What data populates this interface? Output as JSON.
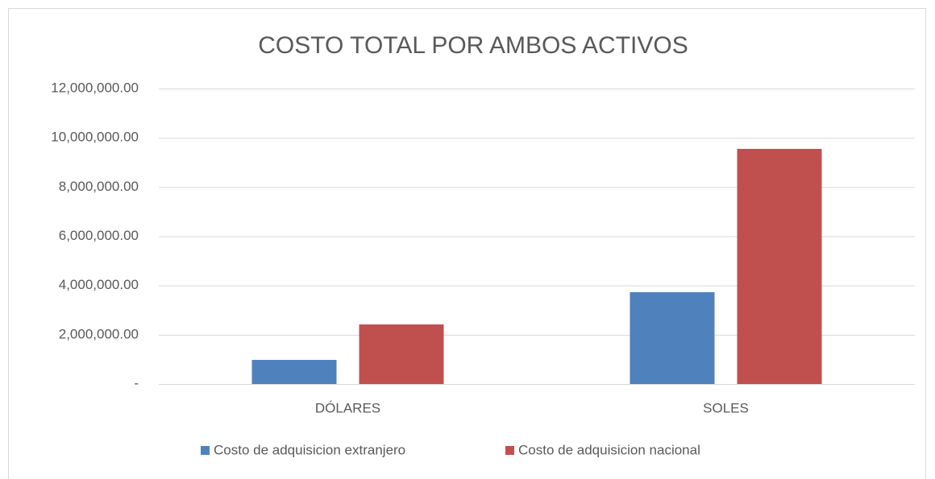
{
  "chart_data": {
    "type": "bar",
    "title": "COSTO TOTAL POR AMBOS ACTIVOS",
    "categories": [
      "DÓLARES",
      "SOLES"
    ],
    "series": [
      {
        "name": "Costo de adquisicion extranjero",
        "color": "#4f81bd",
        "values": [
          980000,
          3730000
        ]
      },
      {
        "name": "Costo de adquisicion nacional",
        "color": "#c0504d",
        "values": [
          2420000,
          9550000
        ]
      }
    ],
    "ylim": [
      0,
      12000000
    ],
    "yticks": [
      {
        "value": 0,
        "label": "-"
      },
      {
        "value": 2000000,
        "label": "2,000,000.00"
      },
      {
        "value": 4000000,
        "label": "4,000,000.00"
      },
      {
        "value": 6000000,
        "label": "6,000,000.00"
      },
      {
        "value": 8000000,
        "label": "8,000,000.00"
      },
      {
        "value": 10000000,
        "label": "10,000,000.00"
      },
      {
        "value": 12000000,
        "label": "12,000,000.00"
      }
    ],
    "grid": true,
    "legend": "bottom"
  }
}
